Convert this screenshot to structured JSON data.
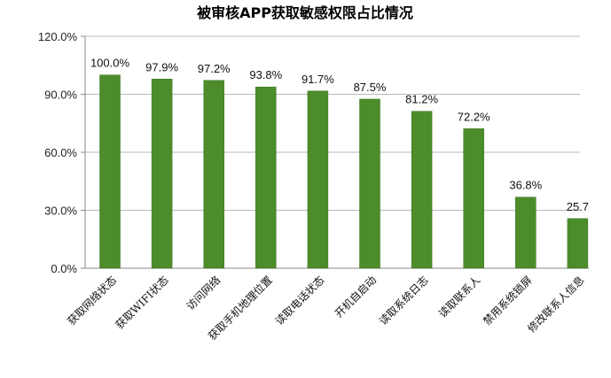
{
  "chart_data": {
    "type": "bar",
    "title": "被审核APP获取敏感权限占比情况",
    "xlabel": "",
    "ylabel": "",
    "categories": [
      "获取网络状态",
      "获取WIFI状态",
      "访问网络",
      "获取手机地理位置",
      "读取电话状态",
      "开机自启动",
      "读取系统日志",
      "读取联系人",
      "禁用系统锁屏",
      "修改联系人信息"
    ],
    "values": [
      100.0,
      97.9,
      97.2,
      93.8,
      91.7,
      87.5,
      81.2,
      72.2,
      36.8,
      25.7
    ],
    "data_labels": [
      "100.0%",
      "97.9%",
      "97.2%",
      "93.8%",
      "91.7%",
      "87.5%",
      "81.2%",
      "72.2%",
      "36.8%",
      "25.7"
    ],
    "yticks": [
      0,
      30,
      60,
      90,
      120
    ],
    "ytick_labels": [
      "0.0%",
      "30.0%",
      "60.0%",
      "90.0%",
      "120.0%"
    ],
    "ylim": [
      0,
      120
    ],
    "grid": true,
    "legend": "none",
    "colors": {
      "bar": "#4c8c2b",
      "bar_edge": "#3d7421",
      "grid": "#b8b8b8",
      "axis": "#888888"
    }
  }
}
